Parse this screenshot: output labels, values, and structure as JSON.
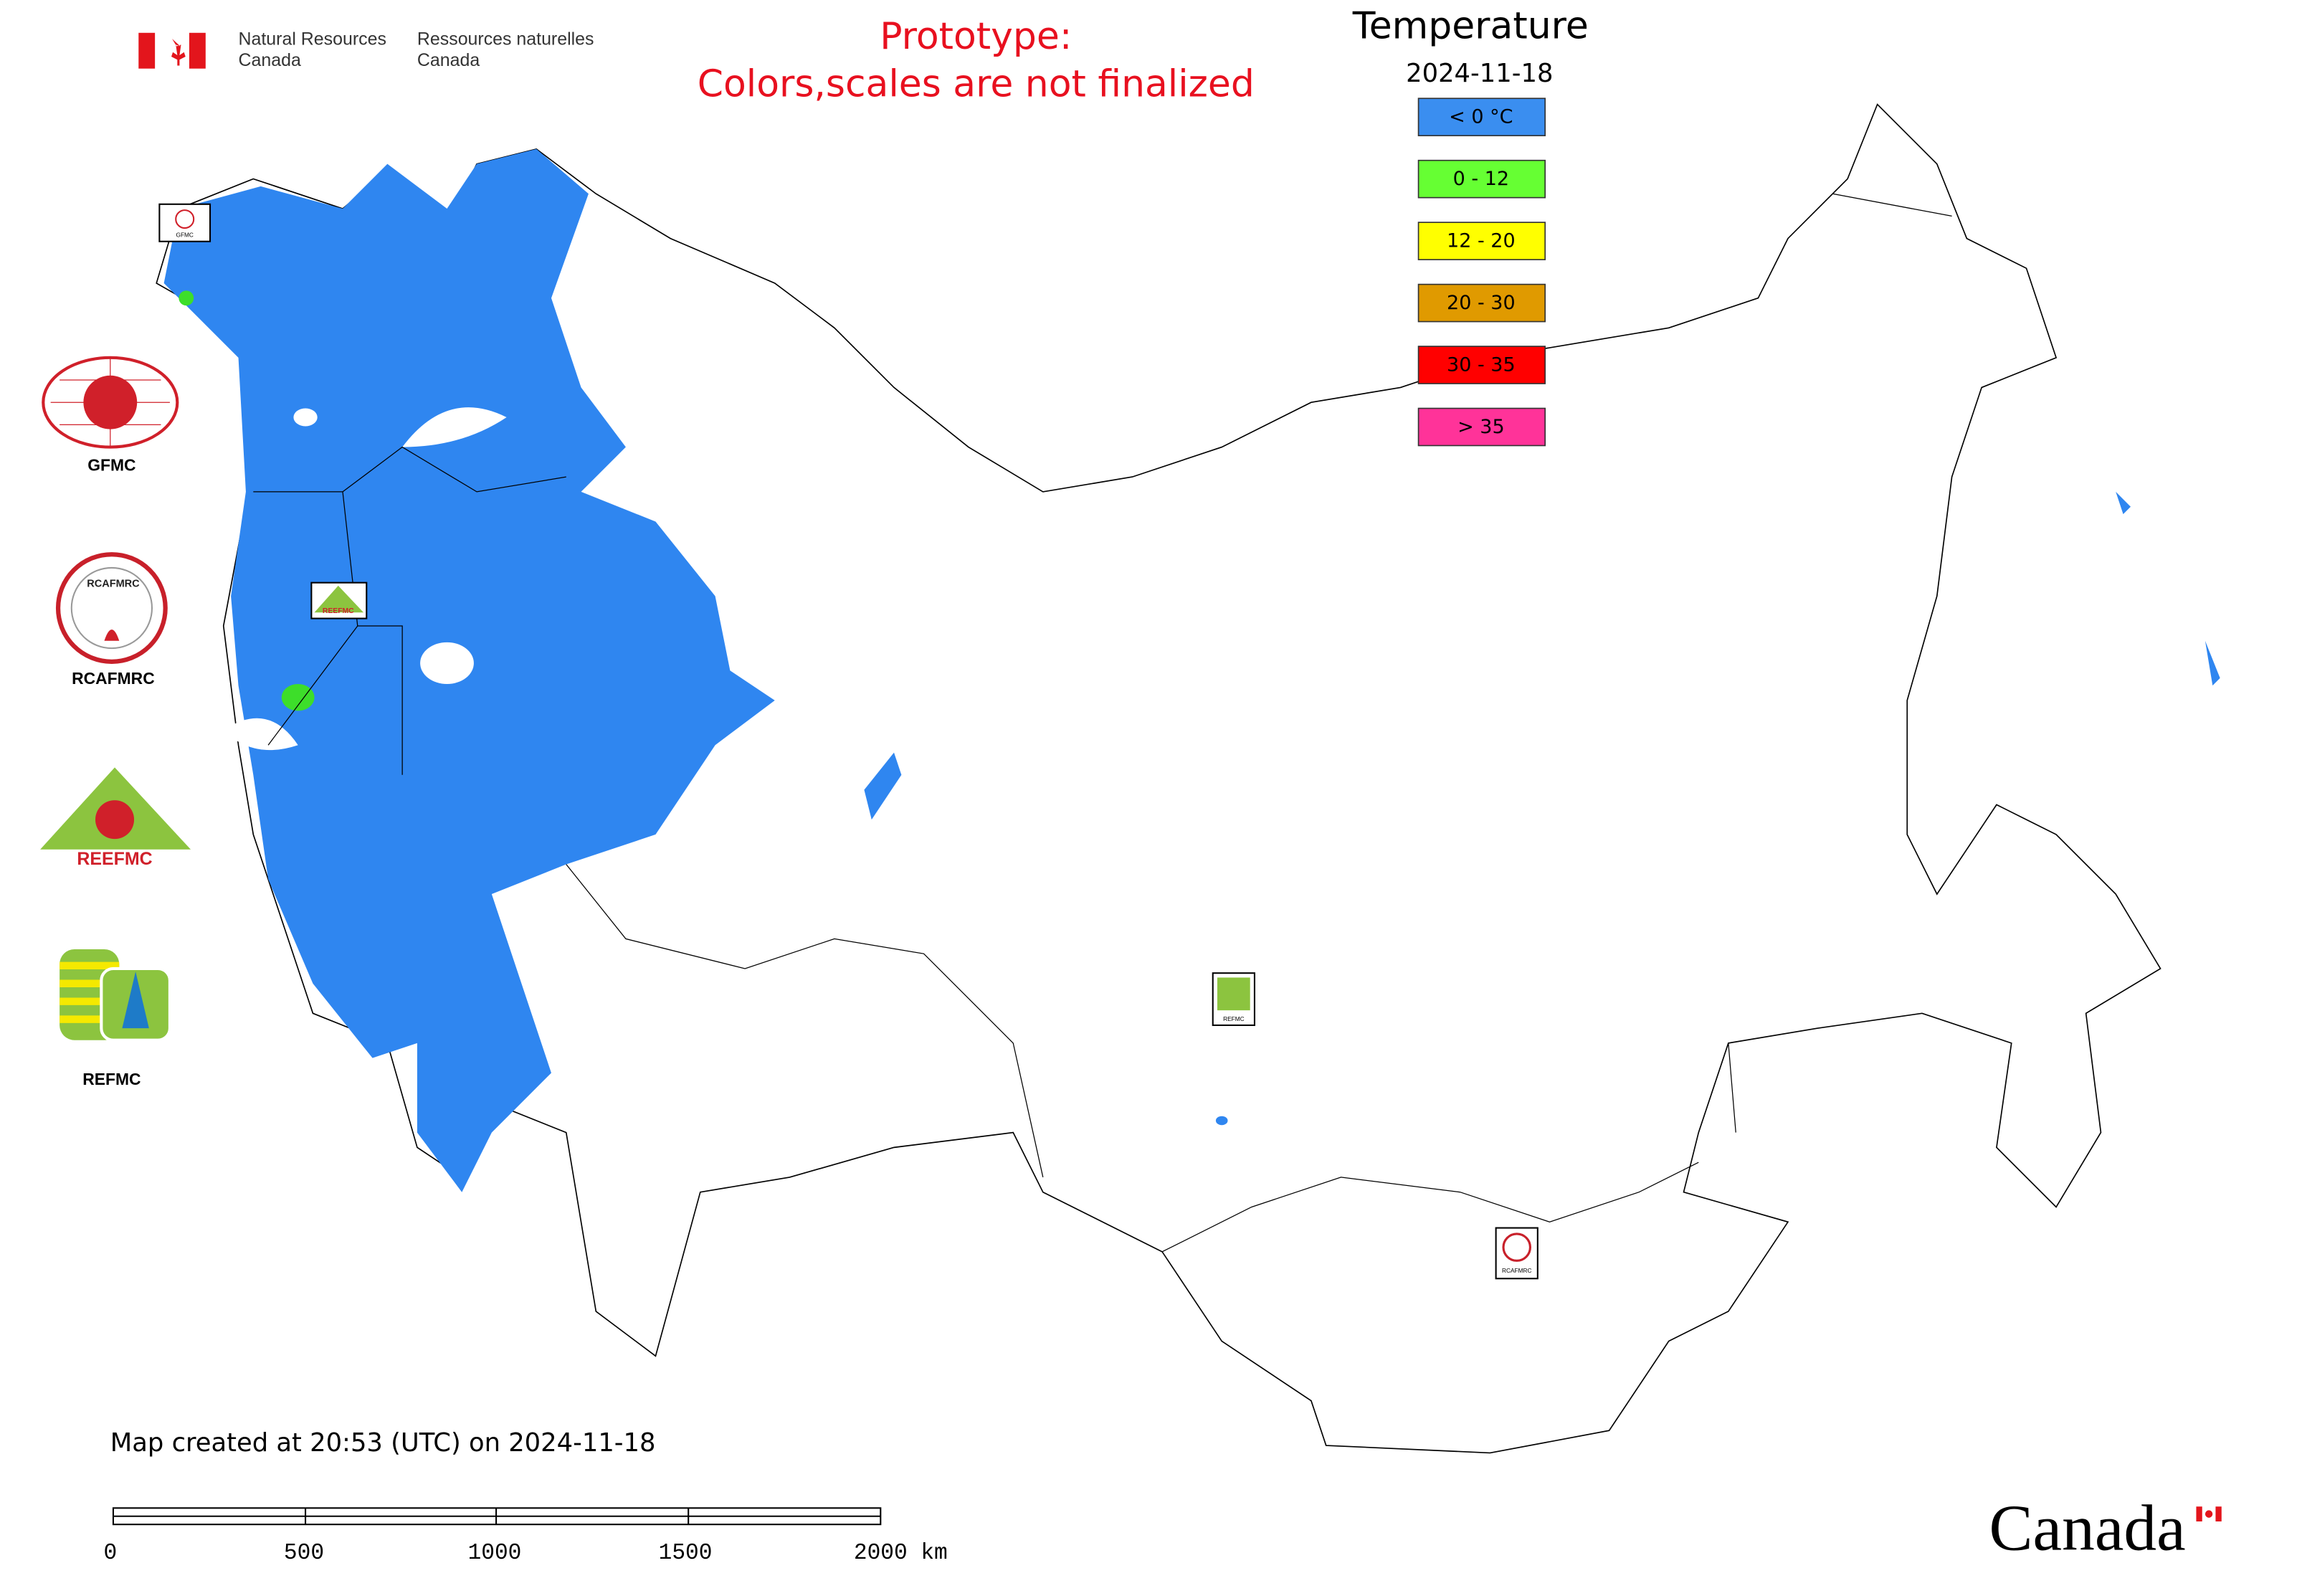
{
  "header": {
    "agency_en": [
      "Natural Resources",
      "Canada"
    ],
    "agency_fr": [
      "Ressources naturelles",
      "Canada"
    ],
    "notice": [
      "Prototype:",
      "Colors,scales are not finalized"
    ]
  },
  "legend": {
    "title": "Temperature",
    "date": "2024-11-18",
    "items": [
      {
        "label": "< 0 °C",
        "color": "#3a8ef0"
      },
      {
        "label": "0 - 12",
        "color": "#66ff33"
      },
      {
        "label": "12 - 20",
        "color": "#ffff00"
      },
      {
        "label": "20 - 30",
        "color": "#e09a00"
      },
      {
        "label": "30 - 35",
        "color": "#ff0000"
      },
      {
        "label": "> 35",
        "color": "#ff3399"
      }
    ]
  },
  "logos": [
    "GFMC",
    "RCAFMRC",
    "REEFMC",
    "REFMC"
  ],
  "footer": {
    "created": "Map created at 20:53 (UTC) on 2024-11-18",
    "scale_labels": [
      "0",
      "500",
      "1000",
      "1500",
      "2000 km"
    ],
    "wordmark": "Canada"
  }
}
